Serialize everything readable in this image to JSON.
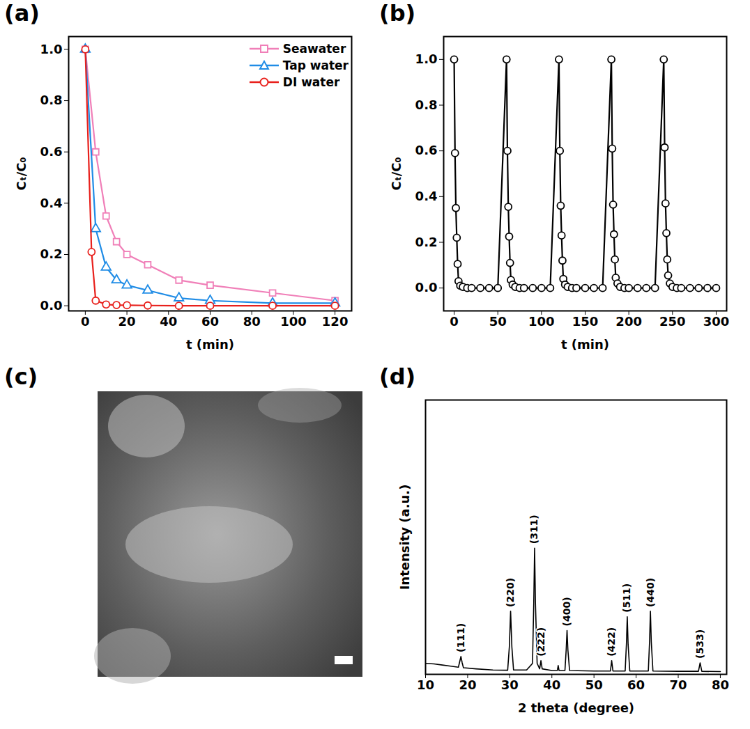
{
  "chart_data": [
    {
      "panel": "(a)",
      "type": "line",
      "x_label": "t (min)",
      "y_label": "Cₜ/C₀",
      "xlim": [
        -8,
        128
      ],
      "xticks": [
        0,
        20,
        40,
        60,
        80,
        100,
        120
      ],
      "ylim": [
        -0.02,
        1.05
      ],
      "yticks": [
        {
          "value": 0,
          "label": "0.0"
        },
        {
          "value": 0.2,
          "label": "0.2"
        },
        {
          "value": 0.4,
          "label": "0.4"
        },
        {
          "value": 0.6,
          "label": "0.6"
        },
        {
          "value": 0.8,
          "label": "0.8"
        },
        {
          "value": 1,
          "label": "1.0"
        }
      ],
      "legend": "top-right",
      "series": [
        {
          "name": "Seawater",
          "color": "#f07fb8",
          "marker": "square",
          "x": [
            0,
            5,
            10,
            15,
            20,
            30,
            45,
            60,
            90,
            120
          ],
          "values": [
            1,
            0.6,
            0.35,
            0.25,
            0.2,
            0.16,
            0.1,
            0.08,
            0.05,
            0.02
          ]
        },
        {
          "name": "Tap water",
          "color": "#1f8ce6",
          "marker": "triangle",
          "x": [
            0,
            5,
            10,
            15,
            20,
            30,
            45,
            60,
            90,
            120
          ],
          "values": [
            1,
            0.3,
            0.15,
            0.1,
            0.08,
            0.06,
            0.03,
            0.02,
            0.01,
            0.01
          ]
        },
        {
          "name": "DI water",
          "color": "#e8201c",
          "marker": "circle",
          "x": [
            0,
            3,
            5,
            10,
            15,
            20,
            30,
            45,
            60,
            90,
            120
          ],
          "values": [
            1,
            0.21,
            0.02,
            0.005,
            0.003,
            0.002,
            0.001,
            0,
            0,
            0,
            0
          ]
        }
      ]
    },
    {
      "panel": "(b)",
      "type": "line",
      "x_label": "t (min)",
      "y_label": "Cₜ/C₀",
      "xlim": [
        -12,
        312
      ],
      "xticks": [
        0,
        50,
        100,
        150,
        200,
        250,
        300
      ],
      "ylim": [
        -0.1,
        1.1
      ],
      "yticks": [
        {
          "value": 0,
          "label": "0.0"
        },
        {
          "value": 0.2,
          "label": "0.2"
        },
        {
          "value": 0.4,
          "label": "0.4"
        },
        {
          "value": 0.6,
          "label": "0.6"
        },
        {
          "value": 0.8,
          "label": "0.8"
        },
        {
          "value": 1,
          "label": "1.0"
        }
      ],
      "series": [
        {
          "color": "#000000",
          "marker": "circle",
          "x": [
            0,
            1,
            2,
            3,
            4,
            5,
            7,
            10,
            15,
            20,
            30,
            40,
            50,
            60,
            61,
            62,
            63,
            64,
            65,
            67,
            70,
            75,
            80,
            90,
            100,
            110,
            120,
            121,
            122,
            123,
            124,
            125,
            127,
            130,
            135,
            140,
            150,
            160,
            170,
            180,
            181,
            182,
            183,
            184,
            185,
            187,
            190,
            195,
            200,
            210,
            220,
            230,
            240,
            241,
            242,
            243,
            244,
            245,
            247,
            250,
            255,
            260,
            270,
            280,
            290,
            300
          ],
          "values": [
            1,
            0.59,
            0.35,
            0.22,
            0.105,
            0.03,
            0.01,
            0.005,
            0,
            0,
            0,
            0,
            0,
            1,
            0.6,
            0.355,
            0.225,
            0.11,
            0.035,
            0.015,
            0.005,
            0,
            0,
            0,
            0,
            0,
            1,
            0.6,
            0.36,
            0.23,
            0.12,
            0.04,
            0.015,
            0.005,
            0,
            0,
            0,
            0,
            0,
            1,
            0.61,
            0.365,
            0.235,
            0.125,
            0.045,
            0.02,
            0.005,
            0,
            0,
            0,
            0,
            0,
            1,
            0.615,
            0.37,
            0.24,
            0.125,
            0.055,
            0.02,
            0.005,
            0,
            0,
            0,
            0,
            0,
            0
          ]
        }
      ]
    },
    {
      "panel": "(c)",
      "type": "image"
    },
    {
      "panel": "(d)",
      "type": "line",
      "x_label": "2 theta (degree)",
      "y_label": "Intensity (a.u.)",
      "xlim": [
        10,
        81.5
      ],
      "xticks": [
        10,
        20,
        30,
        40,
        50,
        60,
        70,
        80
      ],
      "ylim": [
        0,
        100
      ],
      "tick_labels": "x",
      "series": [
        {
          "color": "#000000",
          "x": [
            10,
            12,
            14,
            16,
            17.8,
            18.1,
            18.4,
            18.7,
            19,
            22,
            26,
            29.5,
            29.9,
            30.2,
            30.5,
            30.9,
            34,
            35.4,
            35.7,
            35.9,
            36.1,
            36.5,
            37.1,
            37.4,
            37.7,
            40,
            41.3,
            41.5,
            41.7,
            43.1,
            43.4,
            43.6,
            43.8,
            44.2,
            50,
            53.9,
            54.2,
            54.5,
            57.4,
            57.7,
            57.9,
            58.1,
            58.5,
            62.9,
            63.2,
            63.4,
            63.6,
            64,
            70,
            74.8,
            75.2,
            75.6,
            80
          ],
          "values": [
            4,
            3.8,
            3.4,
            3,
            2.6,
            4.5,
            6.5,
            4.2,
            2.4,
            2,
            1.6,
            1.5,
            10,
            23,
            10,
            1.6,
            1.6,
            4,
            26,
            46,
            26,
            4,
            2,
            5,
            2,
            1.4,
            1.4,
            3.2,
            1.4,
            1.4,
            9,
            16,
            9,
            1.4,
            1.2,
            1.2,
            5,
            1.2,
            1.2,
            11,
            21,
            11,
            1.2,
            1.2,
            12,
            23,
            12,
            1.2,
            1.1,
            1.1,
            4.2,
            1.1,
            1
          ]
        }
      ],
      "annotations": [
        {
          "text": "(111)",
          "x": 18.4
        },
        {
          "text": "(220)",
          "x": 30.2
        },
        {
          "text": "(311)",
          "x": 35.9
        },
        {
          "text": "(222)",
          "x": 37.4
        },
        {
          "text": "(400)",
          "x": 43.6
        },
        {
          "text": "(422)",
          "x": 54.2
        },
        {
          "text": "(511)",
          "x": 57.9
        },
        {
          "text": "(440)",
          "x": 63.4
        },
        {
          "text": "(533)",
          "x": 75.2
        }
      ]
    }
  ]
}
